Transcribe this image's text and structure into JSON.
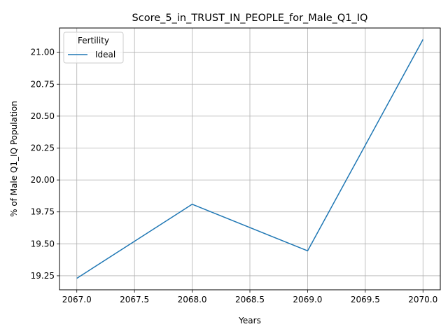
{
  "chart_data": {
    "type": "line",
    "title": "Score_5_in_TRUST_IN_PEOPLE_for_Male_Q1_IQ",
    "xlabel": "Years",
    "ylabel": "% of Male Q1_IQ Population",
    "xlim": [
      2066.85,
      2070.15
    ],
    "ylim": [
      19.14,
      21.19
    ],
    "xticks": [
      2067.0,
      2067.5,
      2068.0,
      2068.5,
      2069.0,
      2069.5,
      2070.0
    ],
    "xtick_labels": [
      "2067.0",
      "2067.5",
      "2068.0",
      "2068.5",
      "2069.0",
      "2069.5",
      "2070.0"
    ],
    "yticks": [
      19.25,
      19.5,
      19.75,
      20.0,
      20.25,
      20.5,
      20.75,
      21.0
    ],
    "ytick_labels": [
      "19.25",
      "19.50",
      "19.75",
      "20.00",
      "20.25",
      "20.50",
      "20.75",
      "21.00"
    ],
    "grid": true,
    "legend": {
      "title": "Fertility",
      "placement": "top-left"
    },
    "series": [
      {
        "name": "Ideal",
        "color": "#1f77b4",
        "x": [
          2067,
          2068,
          2069,
          2070
        ],
        "y": [
          19.23,
          19.81,
          19.445,
          21.1
        ]
      }
    ]
  }
}
